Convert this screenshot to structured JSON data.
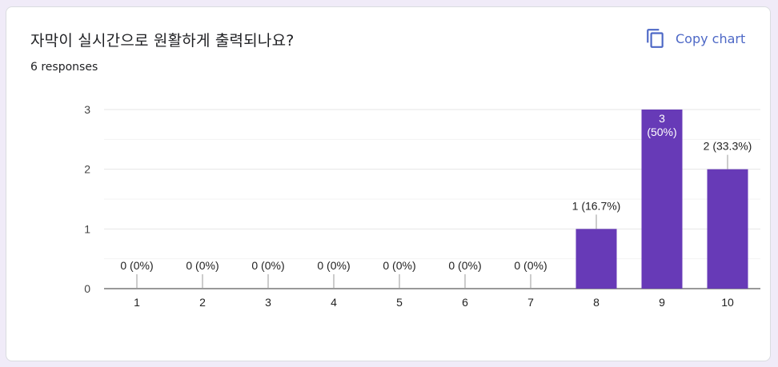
{
  "question": {
    "title": "자막이 실시간으로 원활하게 출력되나요?",
    "responses": "6 responses"
  },
  "toolbar": {
    "copy_label": "Copy chart",
    "copy_icon": "copy-icon"
  },
  "colors": {
    "bar": "#673ab7",
    "accent": "#4d68c6",
    "background": "#f0ebf8"
  },
  "chart_data": {
    "type": "bar",
    "categories": [
      "1",
      "2",
      "3",
      "4",
      "5",
      "6",
      "7",
      "8",
      "9",
      "10"
    ],
    "values": [
      0,
      0,
      0,
      0,
      0,
      0,
      0,
      1,
      3,
      2
    ],
    "data_labels": [
      "0 (0%)",
      "0 (0%)",
      "0 (0%)",
      "0 (0%)",
      "0 (0%)",
      "0 (0%)",
      "0 (0%)",
      "1 (16.7%)",
      "3\n(50%)",
      "2 (33.3%)"
    ],
    "yticks": [
      "0",
      "1",
      "2",
      "3"
    ],
    "ylim": [
      0,
      3
    ],
    "grid": true,
    "legend": "none"
  }
}
